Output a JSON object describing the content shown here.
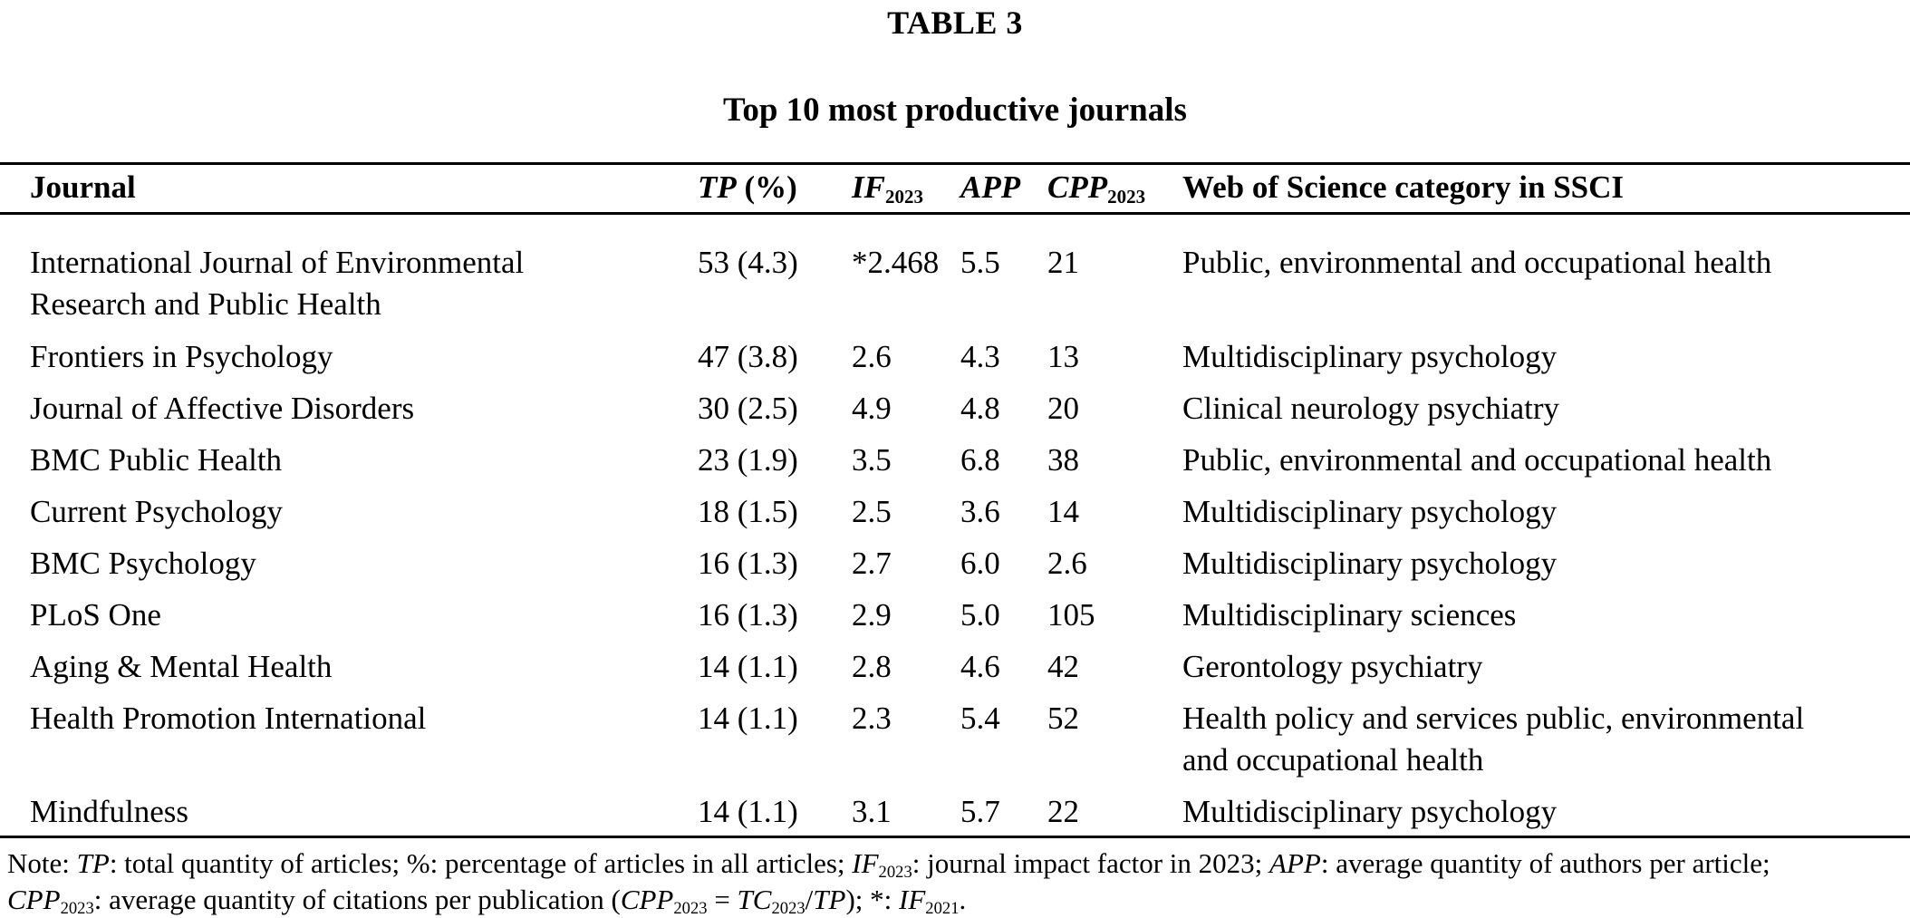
{
  "page": {
    "table_label": "TABLE 3",
    "table_title": "Top 10 most productive journals"
  },
  "table": {
    "headers": {
      "journal": "Journal",
      "tp_main": "TP",
      "tp_suffix": "(%)",
      "if_main": "IF",
      "if_sub": "2023",
      "app": "APP",
      "cpp_main": "CPP",
      "cpp_sub": "2023",
      "category": "Web of Science category in SSCI"
    },
    "rows": [
      {
        "journal": "International Journal of Environmental Research and Public Health",
        "tp": "53 (4.3)",
        "if": "*2.468",
        "app": "5.5",
        "cpp": "21",
        "category": "Public, environmental and occupational health"
      },
      {
        "journal": "Frontiers in Psychology",
        "tp": "47 (3.8)",
        "if": "2.6",
        "app": "4.3",
        "cpp": "13",
        "category": "Multidisciplinary psychology"
      },
      {
        "journal": "Journal of Affective Disorders",
        "tp": "30 (2.5)",
        "if": "4.9",
        "app": "4.8",
        "cpp": "20",
        "category": "Clinical neurology psychiatry"
      },
      {
        "journal": "BMC Public Health",
        "tp": "23 (1.9)",
        "if": "3.5",
        "app": "6.8",
        "cpp": "38",
        "category": "Public, environmental and occupational health"
      },
      {
        "journal": "Current Psychology",
        "tp": "18 (1.5)",
        "if": "2.5",
        "app": "3.6",
        "cpp": "14",
        "category": "Multidisciplinary psychology"
      },
      {
        "journal": "BMC Psychology",
        "tp": "16 (1.3)",
        "if": "2.7",
        "app": "6.0",
        "cpp": "2.6",
        "category": "Multidisciplinary psychology"
      },
      {
        "journal": "PLoS One",
        "tp": "16 (1.3)",
        "if": "2.9",
        "app": "5.0",
        "cpp": "105",
        "category": "Multidisciplinary sciences"
      },
      {
        "journal": "Aging & Mental Health",
        "tp": "14 (1.1)",
        "if": "2.8",
        "app": "4.6",
        "cpp": "42",
        "category": "Gerontology psychiatry"
      },
      {
        "journal": "Health Promotion International",
        "tp": "14 (1.1)",
        "if": "2.3",
        "app": "5.4",
        "cpp": "52",
        "category": "Health policy and services public, environmental and occupational health"
      },
      {
        "journal": "Mindfulness",
        "tp": "14 (1.1)",
        "if": "3.1",
        "app": "5.7",
        "cpp": "22",
        "category": "Multidisciplinary psychology"
      }
    ]
  },
  "note": {
    "segments": [
      {
        "t": "Note: "
      },
      {
        "t": "TP",
        "i": true
      },
      {
        "t": ": total quantity of articles; %: percentage of articles in all articles; "
      },
      {
        "t": "IF",
        "i": true
      },
      {
        "t": "2023",
        "sub": true
      },
      {
        "t": ": journal impact factor in 2023; "
      },
      {
        "t": "APP",
        "i": true
      },
      {
        "t": ": average quantity of authors per article;"
      },
      {
        "br": true
      },
      {
        "t": "CPP",
        "i": true
      },
      {
        "t": "2023",
        "sub": true
      },
      {
        "t": ": average quantity of citations per publication ("
      },
      {
        "t": "CPP",
        "i": true
      },
      {
        "t": "2023",
        "sub": true
      },
      {
        "t": " = "
      },
      {
        "t": "TC",
        "i": true
      },
      {
        "t": "2023",
        "sub": true
      },
      {
        "t": "/"
      },
      {
        "t": "TP",
        "i": true
      },
      {
        "t": "); *: "
      },
      {
        "t": "IF",
        "i": true
      },
      {
        "t": "2021",
        "sub": true
      },
      {
        "t": "."
      }
    ]
  }
}
